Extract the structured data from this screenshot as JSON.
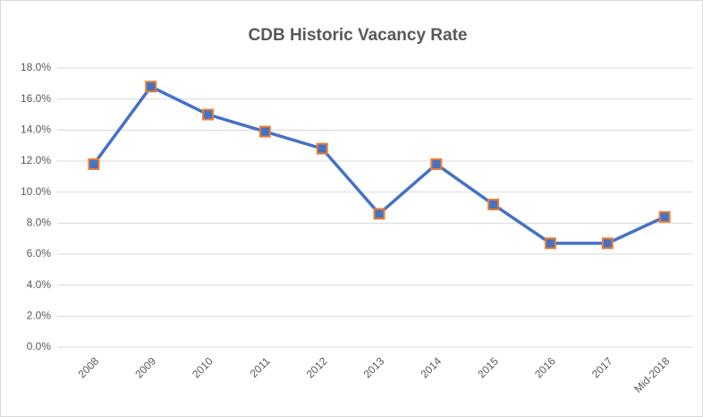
{
  "chart_data": {
    "type": "line",
    "title": "CDB Historic Vacancy Rate",
    "categories": [
      "2008",
      "2009",
      "2010",
      "2011",
      "2012",
      "2013",
      "2014",
      "2015",
      "2016",
      "2017",
      "Mid-2018"
    ],
    "series": [
      {
        "name": "Vacancy Rate",
        "color": "#4472c4",
        "marker_edge_color": "#ed7d31",
        "values": [
          11.8,
          16.8,
          15.0,
          13.9,
          12.8,
          8.6,
          11.8,
          9.2,
          6.7,
          6.7,
          8.4
        ]
      }
    ],
    "ylim": [
      0,
      18
    ],
    "yticks": [
      {
        "value": 0,
        "label": "0.0%"
      },
      {
        "value": 2,
        "label": "2.0%"
      },
      {
        "value": 4,
        "label": "4.0%"
      },
      {
        "value": 6,
        "label": "6.0%"
      },
      {
        "value": 8,
        "label": "8.0%"
      },
      {
        "value": 10,
        "label": "10.0%"
      },
      {
        "value": 12,
        "label": "12.0%"
      },
      {
        "value": 14,
        "label": "14.0%"
      },
      {
        "value": 16,
        "label": "16.0%"
      },
      {
        "value": 18,
        "label": "18.0%"
      }
    ],
    "grid": true
  }
}
